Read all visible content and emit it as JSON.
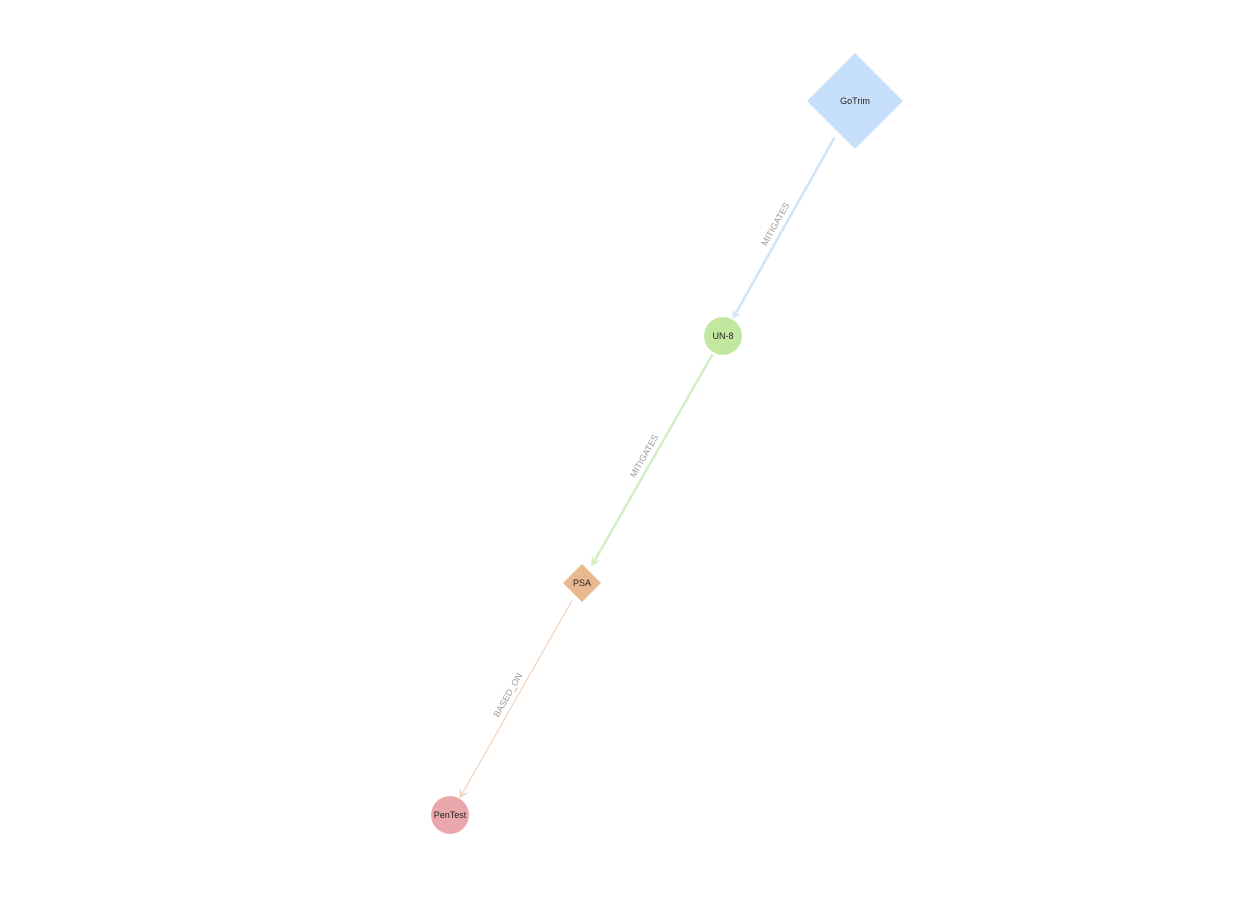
{
  "graph": {
    "nodes": [
      {
        "id": "gotrim",
        "label": "GoTrim",
        "shape": "diamond",
        "color": "#c6dffa"
      },
      {
        "id": "un8",
        "label": "UN-8",
        "shape": "circle",
        "color": "#c2e8a0"
      },
      {
        "id": "psa",
        "label": "PSA",
        "shape": "diamond",
        "color": "#e8b98e"
      },
      {
        "id": "pentest",
        "label": "PenTest",
        "shape": "circle",
        "color": "#eba8ac"
      }
    ],
    "edges": [
      {
        "id": "gotrim-un8",
        "source": "gotrim",
        "target": "un8",
        "label": "MITIGATES",
        "color": "#cfe4f8"
      },
      {
        "id": "un8-psa",
        "source": "un8",
        "target": "psa",
        "label": "MITIGATES",
        "color": "#d4eebf"
      },
      {
        "id": "psa-pentest",
        "source": "psa",
        "target": "pentest",
        "label": "BASED_ON",
        "color": "#f2d3bd"
      }
    ]
  }
}
